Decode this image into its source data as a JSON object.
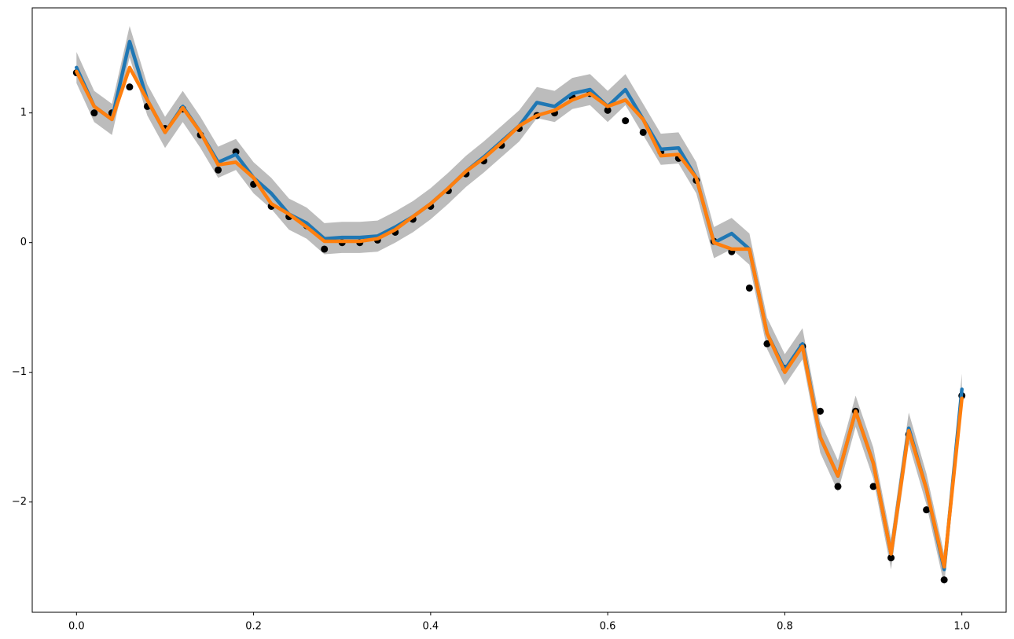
{
  "chart_data": {
    "type": "line",
    "x": [
      0,
      0.02,
      0.04,
      0.06,
      0.08,
      0.1,
      0.12,
      0.14,
      0.16,
      0.18,
      0.2,
      0.22,
      0.24,
      0.26,
      0.28,
      0.3,
      0.32,
      0.34,
      0.36,
      0.38,
      0.4,
      0.42,
      0.44,
      0.46,
      0.48,
      0.5,
      0.52,
      0.54,
      0.56,
      0.58,
      0.6,
      0.62,
      0.64,
      0.66,
      0.68,
      0.7,
      0.72,
      0.74,
      0.76,
      0.78,
      0.8,
      0.82,
      0.84,
      0.86,
      0.88,
      0.9,
      0.92,
      0.94,
      0.96,
      0.98,
      1.0
    ],
    "band": {
      "color": "#b0b0b0",
      "lower": [
        1.23,
        0.93,
        0.83,
        1.43,
        0.98,
        0.73,
        0.93,
        0.73,
        0.5,
        0.56,
        0.38,
        0.26,
        0.1,
        0.03,
        -0.09,
        -0.08,
        -0.08,
        -0.07,
        0,
        0.08,
        0.18,
        0.3,
        0.43,
        0.54,
        0.66,
        0.78,
        0.96,
        0.93,
        1.03,
        1.06,
        0.93,
        1.06,
        0.83,
        0.6,
        0.61,
        0.38,
        -0.12,
        -0.05,
        -0.17,
        -0.82,
        -1.1,
        -0.9,
        -1.62,
        -1.92,
        -1.42,
        -1.82,
        -2.52,
        -1.55,
        -2.02,
        -2.64,
        -1.25
      ],
      "upper": [
        1.47,
        1.17,
        1.07,
        1.67,
        1.22,
        0.97,
        1.17,
        0.97,
        0.74,
        0.8,
        0.62,
        0.5,
        0.34,
        0.27,
        0.15,
        0.16,
        0.16,
        0.17,
        0.24,
        0.32,
        0.42,
        0.54,
        0.67,
        0.78,
        0.9,
        1.02,
        1.2,
        1.17,
        1.27,
        1.3,
        1.17,
        1.3,
        1.07,
        0.84,
        0.85,
        0.62,
        0.12,
        0.19,
        0.07,
        -0.58,
        -0.86,
        -0.66,
        -1.38,
        -1.68,
        -1.18,
        -1.58,
        -2.28,
        -1.31,
        -1.78,
        -2.4,
        -1.01
      ]
    },
    "scatter": {
      "color": "#000000",
      "values": [
        1.31,
        1.0,
        1.0,
        1.2,
        1.05,
        0.88,
        1.03,
        0.83,
        0.56,
        0.7,
        0.45,
        0.28,
        0.2,
        0.13,
        -0.05,
        0.0,
        0.0,
        0.02,
        0.08,
        0.18,
        0.28,
        0.4,
        0.53,
        0.63,
        0.75,
        0.88,
        0.98,
        1.0,
        1.12,
        1.15,
        1.02,
        0.94,
        0.85,
        0.7,
        0.65,
        0.48,
        0.01,
        -0.07,
        -0.35,
        -0.78,
        -0.97,
        -0.8,
        -1.3,
        -1.88,
        -1.3,
        -1.88,
        -2.43,
        -1.48,
        -2.06,
        -2.6,
        -1.18
      ]
    },
    "series": [
      {
        "color": "#1f77b4",
        "values": [
          1.35,
          1.05,
          0.95,
          1.55,
          1.1,
          0.85,
          1.05,
          0.85,
          0.62,
          0.68,
          0.5,
          0.38,
          0.22,
          0.15,
          0.03,
          0.04,
          0.04,
          0.05,
          0.12,
          0.2,
          0.3,
          0.42,
          0.55,
          0.66,
          0.78,
          0.9,
          1.08,
          1.05,
          1.15,
          1.18,
          1.05,
          1.18,
          0.95,
          0.72,
          0.73,
          0.5,
          0.0,
          0.07,
          -0.05,
          -0.7,
          -0.98,
          -0.78,
          -1.5,
          -1.8,
          -1.3,
          -1.7,
          -2.4,
          -1.43,
          -1.9,
          -2.52,
          -1.13
        ]
      },
      {
        "color": "#ff7f0e",
        "values": [
          1.32,
          1.05,
          0.95,
          1.35,
          1.1,
          0.85,
          1.04,
          0.85,
          0.6,
          0.62,
          0.5,
          0.3,
          0.22,
          0.12,
          0.01,
          0.01,
          0.01,
          0.03,
          0.1,
          0.2,
          0.3,
          0.42,
          0.55,
          0.65,
          0.77,
          0.9,
          0.98,
          1.02,
          1.1,
          1.15,
          1.05,
          1.1,
          0.95,
          0.67,
          0.68,
          0.5,
          0.0,
          -0.05,
          -0.05,
          -0.7,
          -1.0,
          -0.8,
          -1.5,
          -1.8,
          -1.3,
          -1.7,
          -2.4,
          -1.45,
          -1.9,
          -2.5,
          -1.2
        ]
      }
    ],
    "xlim": [
      -0.05,
      1.05
    ],
    "ylim": [
      -2.85,
      1.81
    ],
    "xticks": [
      {
        "value": 0,
        "label": "0.0"
      },
      {
        "value": 0.2,
        "label": "0.2"
      },
      {
        "value": 0.4,
        "label": "0.4"
      },
      {
        "value": 0.6,
        "label": "0.6"
      },
      {
        "value": 0.8,
        "label": "0.8"
      },
      {
        "value": 1.0,
        "label": "1.0"
      }
    ],
    "yticks": [
      {
        "value": -2,
        "label": "−2"
      },
      {
        "value": -1,
        "label": "−1"
      },
      0,
      1
    ]
  }
}
